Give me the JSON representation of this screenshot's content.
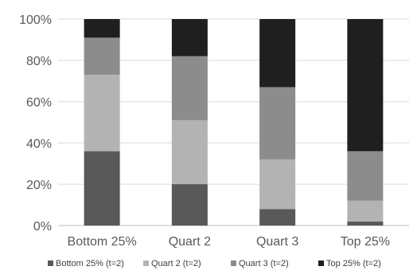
{
  "chart_data": {
    "type": "bar",
    "stacked": true,
    "percent_stacked": true,
    "categories": [
      "Bottom 25%",
      "Quart 2",
      "Quart 3",
      "Top 25%"
    ],
    "series": [
      {
        "name": "Bottom 25% (t=2)",
        "color": "#595959",
        "values": [
          36,
          20,
          8,
          2
        ]
      },
      {
        "name": "Quart 2 (t=2)",
        "color": "#b3b3b3",
        "values": [
          37,
          31,
          24,
          10
        ]
      },
      {
        "name": "Quart 3 (t=2)",
        "color": "#8c8c8c",
        "values": [
          18,
          31,
          35,
          24
        ]
      },
      {
        "name": "Top 25% (t=2)",
        "color": "#1f1f1f",
        "values": [
          9,
          18,
          33,
          64
        ]
      }
    ],
    "y_ticks": [
      "0%",
      "20%",
      "40%",
      "60%",
      "80%",
      "100%"
    ],
    "ylim": [
      0,
      100
    ],
    "grid": true,
    "legend": "bottom",
    "title": "",
    "xlabel": "",
    "ylabel": ""
  }
}
